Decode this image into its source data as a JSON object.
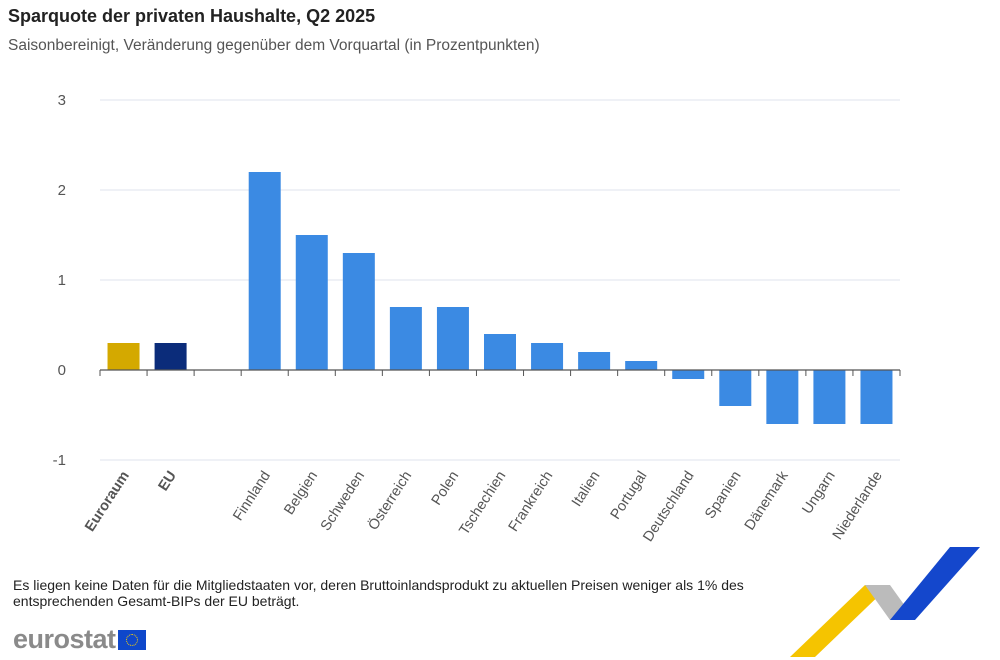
{
  "chart_data": {
    "type": "bar",
    "title": "Sparquote der privaten Haushalte, Q2 2025",
    "subtitle": "Saisonbereinigt, Veränderung gegenüber dem Vorquartal (in Prozentpunkten)",
    "categories": [
      "Euroraum",
      "EU",
      "",
      "Finnland",
      "Belgien",
      "Schweden",
      "Österreich",
      "Polen",
      "Tschechien",
      "Frankreich",
      "Italien",
      "Portugal",
      "Deutschland",
      "Spanien",
      "Dänemark",
      "Ungarn",
      "Niederlande"
    ],
    "values": [
      0.3,
      0.3,
      null,
      2.2,
      1.5,
      1.3,
      0.7,
      0.7,
      0.4,
      0.3,
      0.2,
      0.1,
      -0.1,
      -0.4,
      -0.6,
      -0.6,
      -0.6
    ],
    "bold_categories": [
      "Euroraum",
      "EU"
    ],
    "colors": {
      "Euroraum": "#d4a900",
      "EU": "#0b2c7a",
      "default": "#3b8ae3"
    },
    "ylim": [
      -1,
      3
    ],
    "yticks": [
      "3",
      "2",
      "1",
      "0",
      "-1"
    ],
    "xlabel": "",
    "ylabel": "",
    "grid": true,
    "legend": "none"
  },
  "footer": {
    "note": "Es liegen keine Daten für die Mitgliedstaaten vor, deren Bruttoinlandsprodukt zu aktuellen Preisen weniger als 1% des entsprechenden Gesamt-BIPs der EU beträgt.",
    "logo": "eurostat"
  }
}
